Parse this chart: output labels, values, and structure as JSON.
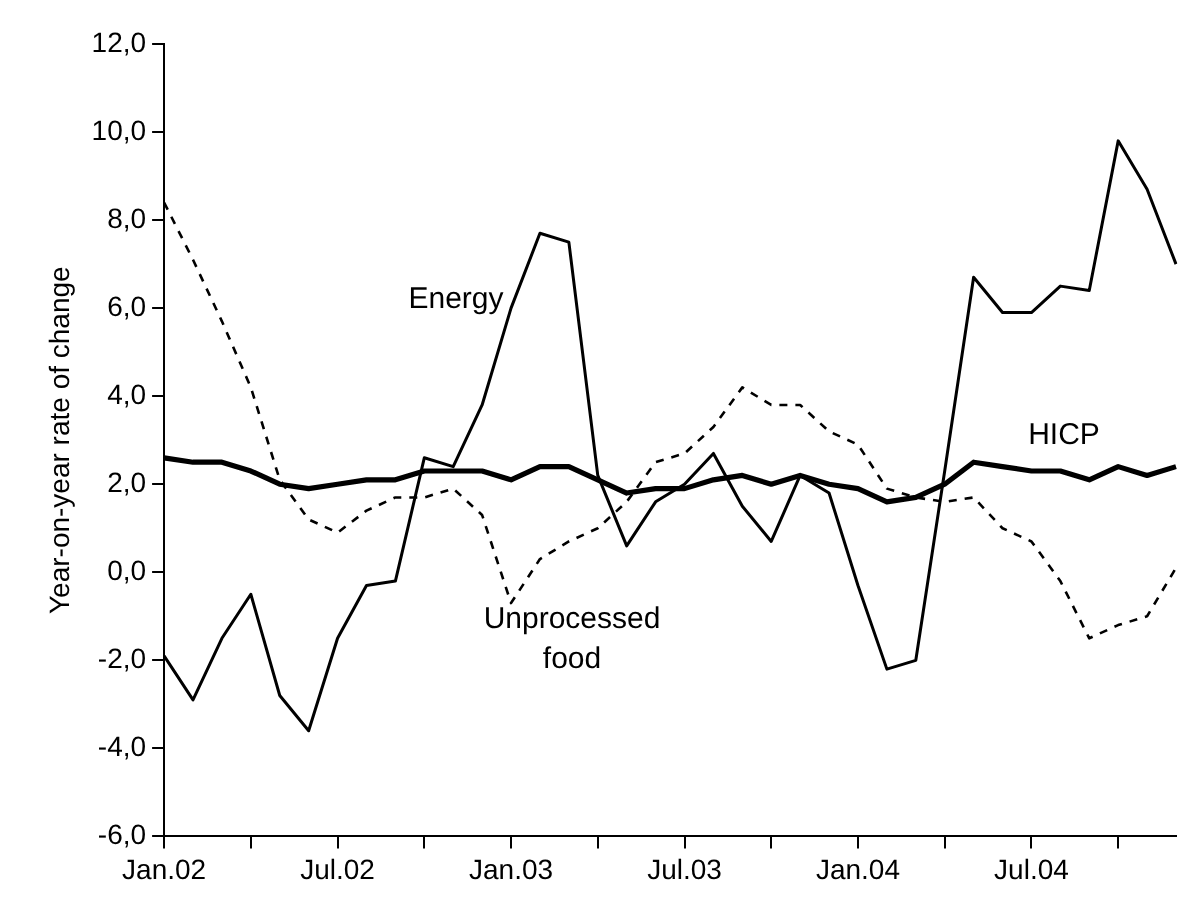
{
  "chart_data": {
    "type": "line",
    "ylabel": "Year-on-year rate of change",
    "categories": [
      "Jan.02",
      null,
      null,
      null,
      null,
      null,
      "Jul.02",
      null,
      null,
      null,
      null,
      null,
      "Jan.03",
      null,
      null,
      null,
      null,
      null,
      "Jul.03",
      null,
      null,
      null,
      null,
      null,
      "Jan.04",
      null,
      null,
      null,
      null,
      null,
      "Jul.04",
      null,
      null,
      null,
      null,
      null
    ],
    "series": [
      {
        "name": "Energy",
        "color": "#000000",
        "line_style": "solid",
        "values": [
          -1.9,
          -2.9,
          -1.5,
          -0.5,
          -2.8,
          -3.6,
          -1.5,
          -0.3,
          -0.2,
          2.6,
          2.4,
          3.8,
          6.0,
          7.7,
          7.5,
          2.2,
          0.6,
          1.6,
          2.0,
          2.7,
          1.5,
          0.7,
          2.2,
          1.8,
          -0.3,
          -2.2,
          -2.0,
          2.3,
          6.7,
          5.9,
          5.9,
          6.5,
          6.4,
          9.8,
          8.7,
          7.0
        ]
      },
      {
        "name": "HICP",
        "color": "#000000",
        "line_style": "solid",
        "values": [
          2.6,
          2.5,
          2.5,
          2.3,
          2.0,
          1.9,
          2.0,
          2.1,
          2.1,
          2.3,
          2.3,
          2.3,
          2.1,
          2.4,
          2.4,
          2.1,
          1.8,
          1.9,
          1.9,
          2.1,
          2.2,
          2.0,
          2.2,
          2.0,
          1.9,
          1.6,
          1.7,
          2.0,
          2.5,
          2.4,
          2.3,
          2.3,
          2.1,
          2.4,
          2.2,
          2.4
        ]
      },
      {
        "name": "Unprocessed food",
        "color": "#000000",
        "line_style": "dashed",
        "values": [
          8.4,
          7.1,
          5.7,
          4.2,
          2.1,
          1.2,
          0.9,
          1.4,
          1.7,
          1.7,
          1.9,
          1.3,
          -0.7,
          0.3,
          0.7,
          1.0,
          1.6,
          2.5,
          2.7,
          3.3,
          4.2,
          3.8,
          3.8,
          3.2,
          2.9,
          1.9,
          1.7,
          1.6,
          1.7,
          1.0,
          0.7,
          -0.2,
          -1.5,
          -1.2,
          -1.0,
          0.1
        ]
      }
    ],
    "ylim": [
      -6,
      12
    ],
    "yticks": [
      {
        "value": -6,
        "label": "-6,0"
      },
      {
        "value": -4,
        "label": "-4,0"
      },
      {
        "value": -2,
        "label": "-2,0"
      },
      {
        "value": 0,
        "label": "0,0"
      },
      {
        "value": 2,
        "label": "2,0"
      },
      {
        "value": 4,
        "label": "4,0"
      },
      {
        "value": 6,
        "label": "6,0"
      },
      {
        "value": 8,
        "label": "8,0"
      },
      {
        "value": 10,
        "label": "10,0"
      },
      {
        "value": 12,
        "label": "12,0"
      }
    ],
    "grid": false,
    "legend": false,
    "marker": "none"
  }
}
